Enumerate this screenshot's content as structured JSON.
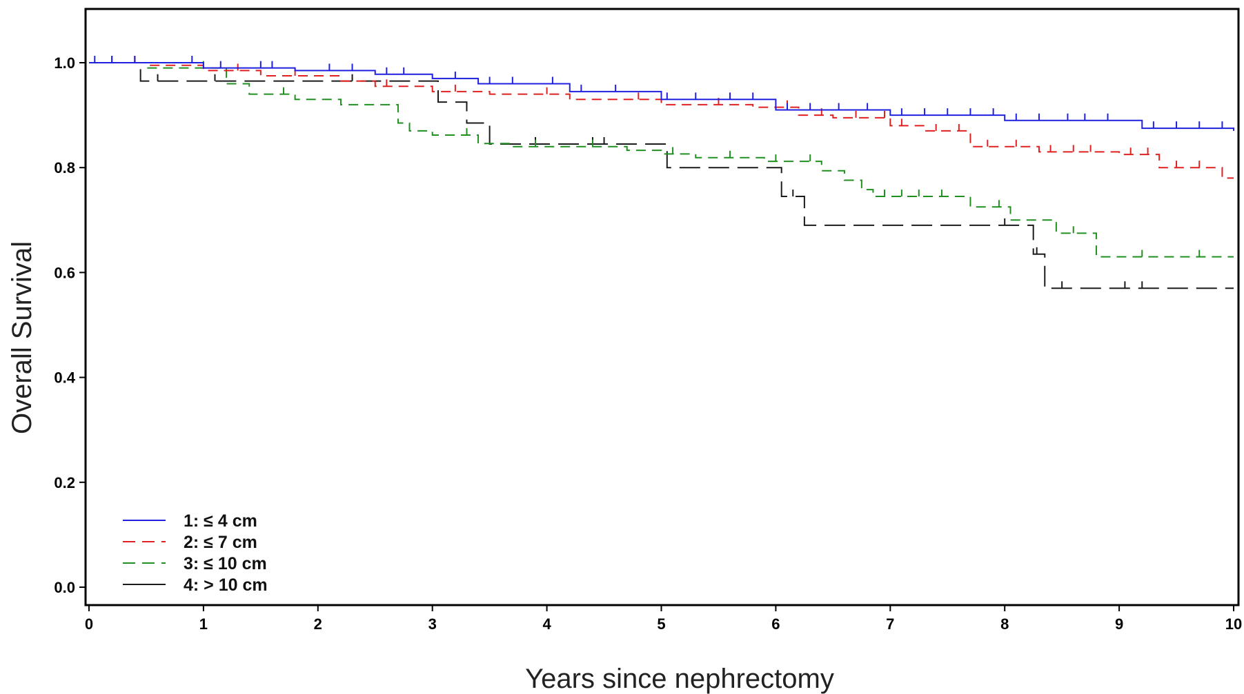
{
  "chart_data": {
    "type": "line",
    "subtype": "kaplan-meier",
    "xlabel": "Years since nephrectomy",
    "ylabel": "Overall Survival",
    "xlim": [
      0,
      10
    ],
    "ylim": [
      0,
      1.1
    ],
    "xticks": [
      "0",
      "1",
      "2",
      "3",
      "4",
      "5",
      "6",
      "7",
      "8",
      "9",
      "10"
    ],
    "yticks": [
      "0.0",
      "0.2",
      "0.4",
      "0.6",
      "0.8",
      "1.0"
    ],
    "grid": false,
    "legend_position": "bottom-left",
    "series": [
      {
        "name": "1: ≤ 4 cm",
        "color": "#1f1fe0",
        "dash": "solid",
        "x": [
          0,
          1,
          1.8,
          2.5,
          3,
          3.4,
          4.2,
          5,
          6,
          7,
          8,
          9.2,
          10
        ],
        "y": [
          1.0,
          0.99,
          0.985,
          0.978,
          0.97,
          0.96,
          0.945,
          0.93,
          0.91,
          0.9,
          0.89,
          0.875,
          0.87
        ],
        "censor_x": [
          0.05,
          0.2,
          0.4,
          0.9,
          1.15,
          1.5,
          1.6,
          2.1,
          2.3,
          2.6,
          2.75,
          3.2,
          3.5,
          3.7,
          4.05,
          4.3,
          4.6,
          5.05,
          5.3,
          5.6,
          5.8,
          6.1,
          6.3,
          6.55,
          6.8,
          7.1,
          7.3,
          7.5,
          7.7,
          7.9,
          8.1,
          8.3,
          8.55,
          8.7,
          8.9,
          9.3,
          9.5,
          9.7,
          9.9
        ]
      },
      {
        "name": "2: ≤ 7 cm",
        "color": "#e01f1f",
        "dash": "dashed",
        "x": [
          0,
          0.5,
          1,
          1.5,
          2.2,
          2.5,
          3,
          3.5,
          4.2,
          5,
          5.8,
          6.2,
          6.5,
          7,
          7.3,
          7.7,
          8.3,
          9,
          9.35,
          9.9,
          10
        ],
        "y": [
          1.0,
          0.995,
          0.985,
          0.975,
          0.965,
          0.955,
          0.945,
          0.94,
          0.93,
          0.92,
          0.915,
          0.9,
          0.895,
          0.88,
          0.87,
          0.84,
          0.83,
          0.825,
          0.8,
          0.78,
          0.78
        ],
        "censor_x": [
          0.2,
          0.4,
          1.3,
          1.8,
          2.6,
          3.2,
          4.0,
          4.8,
          5.5,
          6.1,
          6.4,
          6.7,
          6.95,
          7.1,
          7.4,
          7.6,
          7.85,
          8.1,
          8.4,
          8.6,
          8.75,
          9.1,
          9.25,
          9.5,
          9.7
        ]
      },
      {
        "name": "3: ≤ 10 cm",
        "color": "#1f8f1f",
        "dash": "dashed",
        "x": [
          0,
          0.5,
          1.2,
          1.4,
          1.8,
          2.2,
          2.7,
          2.8,
          3.0,
          3.4,
          3.7,
          4.7,
          5.0,
          5.3,
          5.9,
          6.4,
          6.6,
          6.75,
          6.85,
          7.7,
          8.05,
          8.45,
          8.8,
          10
        ],
        "y": [
          1.0,
          0.99,
          0.96,
          0.94,
          0.93,
          0.92,
          0.885,
          0.87,
          0.862,
          0.846,
          0.84,
          0.833,
          0.826,
          0.819,
          0.812,
          0.794,
          0.776,
          0.758,
          0.745,
          0.725,
          0.7,
          0.675,
          0.63,
          0.63
        ],
        "censor_x": [
          0.4,
          1.0,
          1.7,
          2.8,
          3.3,
          3.9,
          4.4,
          5.1,
          5.6,
          6.0,
          6.3,
          6.95,
          7.1,
          7.25,
          7.45,
          7.95,
          8.6,
          9.2,
          9.7
        ]
      },
      {
        "name": "4: > 10 cm",
        "color": "#1a1a1a",
        "dash": "longdash",
        "x": [
          0,
          0.45,
          2.5,
          3.05,
          3.3,
          3.5,
          5.05,
          6.05,
          6.25,
          8.25,
          8.35,
          10
        ],
        "y": [
          1.0,
          0.965,
          0.965,
          0.925,
          0.885,
          0.845,
          0.8,
          0.745,
          0.69,
          0.635,
          0.57,
          0.57
        ],
        "censor_x": [
          0.6,
          1.1,
          2.3,
          3.9,
          4.4,
          4.5,
          6.15,
          8.0,
          8.28,
          8.5,
          9.05,
          9.2
        ]
      }
    ]
  }
}
